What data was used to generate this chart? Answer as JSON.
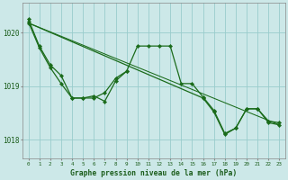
{
  "bg_color": "#cce8e8",
  "grid_color": "#99cccc",
  "line_color": "#1a6b1a",
  "xlabel": "Graphe pression niveau de la mer (hPa)",
  "xlabel_color": "#1a5c1a",
  "tick_color": "#1a5c1a",
  "spine_color": "#888888",
  "xlim": [
    -0.5,
    23.5
  ],
  "ylim": [
    1017.65,
    1020.55
  ],
  "yticks": [
    1018,
    1019,
    1020
  ],
  "xticks": [
    0,
    1,
    2,
    3,
    4,
    5,
    6,
    7,
    8,
    9,
    10,
    11,
    12,
    13,
    14,
    15,
    16,
    17,
    18,
    19,
    20,
    21,
    22,
    23
  ],
  "s1_x": [
    0,
    1,
    2,
    3,
    4,
    5,
    6,
    7,
    8,
    9,
    10,
    11,
    12,
    13,
    14,
    15,
    16,
    17,
    18,
    19,
    20,
    21,
    22,
    23
  ],
  "s1_y": [
    1020.25,
    1019.75,
    1019.4,
    1019.2,
    1018.78,
    1018.78,
    1018.78,
    1018.88,
    1019.15,
    1019.28,
    1019.75,
    1019.75,
    1019.75,
    1019.75,
    1019.05,
    1019.05,
    1018.8,
    1018.55,
    1018.12,
    1018.22,
    1018.58,
    1018.58,
    1018.35,
    1018.32
  ],
  "s2_x": [
    0,
    1,
    2,
    3,
    4,
    5,
    6,
    7,
    8,
    9
  ],
  "s2_y": [
    1020.2,
    1019.72,
    1019.35,
    1019.05,
    1018.78,
    1018.78,
    1018.82,
    1018.72,
    1019.1,
    1019.28
  ],
  "s3_x": [
    0,
    16,
    17,
    18,
    19,
    20,
    21,
    22,
    23
  ],
  "s3_y": [
    1020.18,
    1018.78,
    1018.52,
    1018.1,
    1018.22,
    1018.58,
    1018.58,
    1018.32,
    1018.28
  ],
  "trend_x": [
    0,
    23
  ],
  "trend_y": [
    1020.18,
    1018.28
  ]
}
